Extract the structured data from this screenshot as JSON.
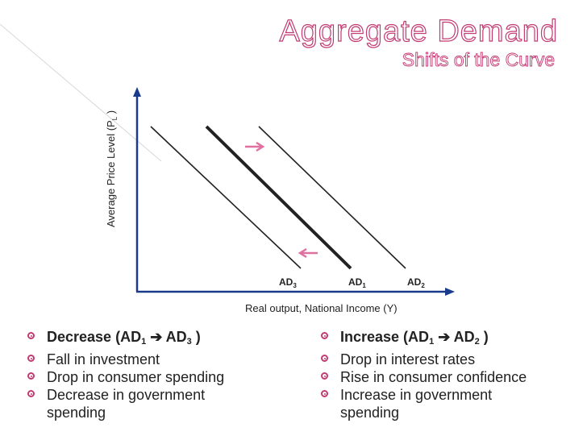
{
  "title": "Aggregate Demand",
  "subtitle": "Shifts of the Curve",
  "diagram": {
    "y_axis_label": "Average Price Level (P",
    "y_axis_sub": "L",
    "y_axis_end": " )",
    "x_axis_label": "Real output, National Income (Y)",
    "curves": [
      {
        "name": "AD",
        "sub": "3"
      },
      {
        "name": "AD",
        "sub": "1"
      },
      {
        "name": "AD",
        "sub": "2"
      }
    ],
    "arrow_color": "#e070a0",
    "axis_color": "#1a3b8c"
  },
  "left_list": {
    "header": {
      "pre": "Decrease (AD",
      "sub1": "1",
      "arrow": "➔",
      "mid": " AD",
      "sub2": "3",
      "post": " )"
    },
    "items": [
      "Fall in investment",
      "Drop in consumer spending",
      "Decrease in government spending"
    ]
  },
  "right_list": {
    "header": {
      "pre": "Increase (AD",
      "sub1": "1",
      "arrow": "➔",
      "mid": " AD",
      "sub2": "2",
      "post": " )"
    },
    "items": [
      "Drop in interest rates",
      "Rise in consumer confidence",
      "Increase in government spending"
    ]
  },
  "accent_color": "#c23a72"
}
